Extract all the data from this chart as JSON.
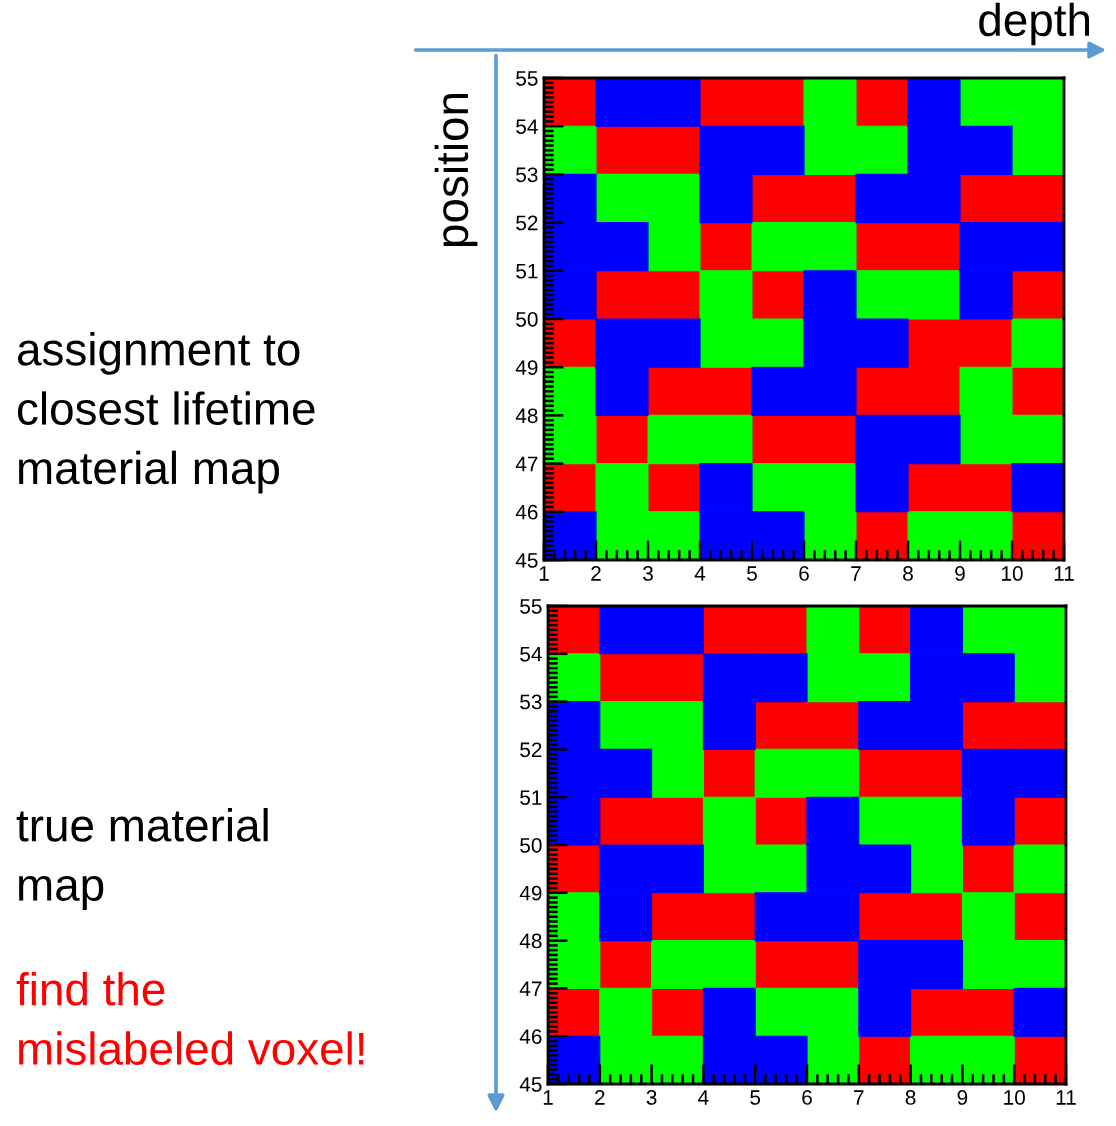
{
  "chart_data": [
    {
      "type": "scatter",
      "title": "assignment to\nclosest lifetime\nmaterial map",
      "xlabel": "depth",
      "ylabel": "position",
      "marker": "square",
      "series": [
        {
          "color": "#ff0000",
          "x": [
            1.5,
            4.5,
            5.5,
            7.5,
            2.5,
            3.5,
            5.5,
            6.5,
            9.5,
            10.5,
            4.5,
            7.5,
            8.5,
            2.5,
            3.5,
            5.5,
            10.5,
            1.5,
            8.5,
            9.5,
            3.5,
            4.5,
            7.5,
            8.5,
            10.5,
            2.5,
            5.5,
            6.5,
            1.5,
            3.5,
            8.5,
            9.5,
            7.5,
            10.5
          ],
          "values": [
            54.5,
            54.5,
            54.5,
            54.5,
            53.5,
            53.5,
            52.5,
            52.5,
            52.5,
            52.5,
            51.5,
            51.5,
            51.5,
            50.5,
            50.5,
            50.5,
            50.5,
            49.5,
            49.5,
            49.5,
            48.5,
            48.5,
            48.5,
            48.5,
            48.5,
            47.5,
            47.5,
            47.5,
            46.5,
            46.5,
            46.5,
            46.5,
            45.5,
            45.5
          ]
        },
        {
          "color": "#00ff00",
          "x": [
            6.5,
            9.5,
            10.5,
            1.5,
            6.5,
            7.5,
            10.5,
            2.5,
            3.5,
            3.5,
            5.5,
            6.5,
            4.5,
            7.5,
            8.5,
            4.5,
            5.5,
            10.5,
            1.5,
            9.5,
            1.5,
            3.5,
            4.5,
            9.5,
            10.5,
            2.5,
            5.5,
            6.5,
            2.5,
            3.5,
            6.5,
            8.5,
            9.5
          ],
          "values": [
            54.5,
            54.5,
            54.5,
            53.5,
            53.5,
            53.5,
            53.5,
            52.5,
            52.5,
            51.5,
            51.5,
            51.5,
            50.5,
            50.5,
            50.5,
            49.5,
            49.5,
            49.5,
            48.5,
            48.5,
            47.5,
            47.5,
            47.5,
            47.5,
            47.5,
            46.5,
            46.5,
            46.5,
            45.5,
            45.5,
            45.5,
            45.5,
            45.5
          ]
        },
        {
          "color": "#0000ff",
          "x": [
            2.5,
            3.5,
            8.5,
            4.5,
            5.5,
            8.5,
            9.5,
            1.5,
            4.5,
            7.5,
            8.5,
            1.5,
            2.5,
            9.5,
            10.5,
            1.5,
            6.5,
            9.5,
            2.5,
            3.5,
            6.5,
            7.5,
            2.5,
            5.5,
            6.5,
            7.5,
            8.5,
            4.5,
            7.5,
            10.5,
            1.5,
            4.5,
            5.5
          ],
          "values": [
            54.5,
            54.5,
            54.5,
            53.5,
            53.5,
            53.5,
            53.5,
            52.5,
            52.5,
            52.5,
            52.5,
            51.5,
            51.5,
            51.5,
            51.5,
            50.5,
            50.5,
            50.5,
            49.5,
            49.5,
            49.5,
            49.5,
            48.5,
            48.5,
            48.5,
            47.5,
            47.5,
            46.5,
            46.5,
            46.5,
            45.5,
            45.5,
            45.5
          ]
        }
      ],
      "xlim": [
        1,
        11
      ],
      "xticks": [
        1,
        2,
        3,
        4,
        5,
        6,
        7,
        8,
        9,
        10,
        11
      ],
      "ylim": [
        45,
        55
      ],
      "yticks": [
        45,
        46,
        47,
        48,
        49,
        50,
        51,
        52,
        53,
        54,
        55
      ]
    },
    {
      "type": "scatter",
      "title": "true material\nmap",
      "annotations": [
        "find the\nmislabeled voxel!"
      ],
      "marker": "square",
      "series": [
        {
          "color": "#ff0000",
          "x": [
            1.5,
            4.5,
            5.5,
            7.5,
            2.5,
            3.5,
            5.5,
            6.5,
            9.5,
            10.5,
            4.5,
            7.5,
            8.5,
            2.5,
            3.5,
            5.5,
            10.5,
            1.5,
            9.5,
            3.5,
            4.5,
            7.5,
            8.5,
            10.5,
            2.5,
            5.5,
            6.5,
            1.5,
            3.5,
            8.5,
            9.5,
            7.5,
            10.5
          ],
          "values": [
            54.5,
            54.5,
            54.5,
            54.5,
            53.5,
            53.5,
            52.5,
            52.5,
            52.5,
            52.5,
            51.5,
            51.5,
            51.5,
            50.5,
            50.5,
            50.5,
            50.5,
            49.5,
            49.5,
            48.5,
            48.5,
            48.5,
            48.5,
            48.5,
            47.5,
            47.5,
            47.5,
            46.5,
            46.5,
            46.5,
            46.5,
            45.5,
            45.5
          ]
        },
        {
          "color": "#00ff00",
          "x": [
            6.5,
            9.5,
            10.5,
            1.5,
            6.5,
            7.5,
            10.5,
            2.5,
            3.5,
            3.5,
            5.5,
            6.5,
            4.5,
            7.5,
            8.5,
            4.5,
            5.5,
            8.5,
            10.5,
            1.5,
            9.5,
            1.5,
            3.5,
            4.5,
            9.5,
            10.5,
            2.5,
            5.5,
            6.5,
            2.5,
            3.5,
            6.5,
            8.5,
            9.5
          ],
          "values": [
            54.5,
            54.5,
            54.5,
            53.5,
            53.5,
            53.5,
            53.5,
            52.5,
            52.5,
            51.5,
            51.5,
            51.5,
            50.5,
            50.5,
            50.5,
            49.5,
            49.5,
            49.5,
            49.5,
            48.5,
            48.5,
            47.5,
            47.5,
            47.5,
            47.5,
            47.5,
            46.5,
            46.5,
            46.5,
            45.5,
            45.5,
            45.5,
            45.5,
            45.5
          ]
        },
        {
          "color": "#0000ff",
          "x": [
            2.5,
            3.5,
            8.5,
            4.5,
            5.5,
            8.5,
            9.5,
            1.5,
            4.5,
            7.5,
            8.5,
            1.5,
            2.5,
            9.5,
            10.5,
            1.5,
            6.5,
            9.5,
            2.5,
            3.5,
            6.5,
            7.5,
            2.5,
            5.5,
            6.5,
            7.5,
            8.5,
            4.5,
            7.5,
            10.5,
            1.5,
            4.5,
            5.5
          ],
          "values": [
            54.5,
            54.5,
            54.5,
            53.5,
            53.5,
            53.5,
            53.5,
            52.5,
            52.5,
            52.5,
            52.5,
            51.5,
            51.5,
            51.5,
            51.5,
            50.5,
            50.5,
            50.5,
            49.5,
            49.5,
            49.5,
            49.5,
            48.5,
            48.5,
            48.5,
            47.5,
            47.5,
            46.5,
            46.5,
            46.5,
            45.5,
            45.5,
            45.5
          ]
        }
      ],
      "xlim": [
        1,
        11
      ],
      "xticks": [
        1,
        2,
        3,
        4,
        5,
        6,
        7,
        8,
        9,
        10,
        11
      ],
      "ylim": [
        45,
        55
      ],
      "yticks": [
        45,
        46,
        47,
        48,
        49,
        50,
        51,
        52,
        53,
        54,
        55
      ]
    }
  ]
}
